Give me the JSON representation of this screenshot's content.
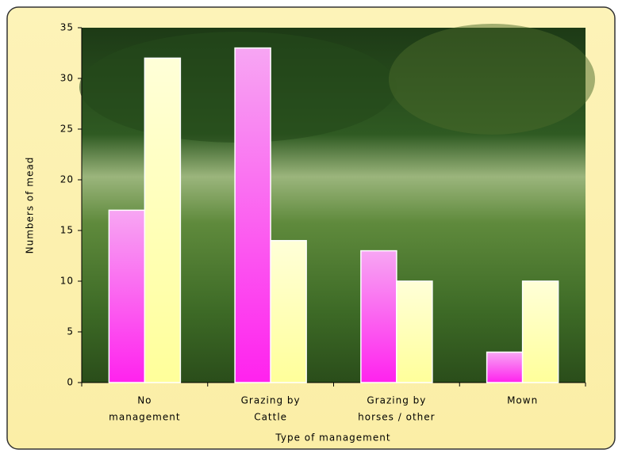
{
  "chart_data": {
    "type": "bar",
    "categories": [
      [
        "No",
        "management"
      ],
      [
        "Grazing by",
        "Cattle"
      ],
      [
        "Grazing by",
        "horses / other"
      ],
      [
        "Mown"
      ]
    ],
    "series": [
      {
        "color": "#ff33f0",
        "values": [
          17,
          33,
          13,
          3
        ]
      },
      {
        "color": "#ffffb0",
        "values": [
          32,
          14,
          10,
          10
        ]
      }
    ],
    "y_label": "Numbers of mead",
    "x_label": "Type of management",
    "ylim": [
      0,
      35
    ],
    "yticks": [
      0,
      5,
      10,
      15,
      20,
      25,
      30,
      35
    ]
  }
}
